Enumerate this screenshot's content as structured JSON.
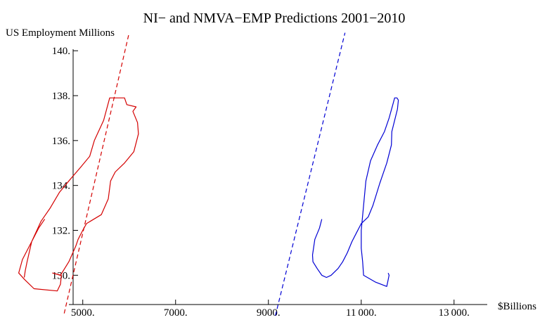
{
  "chart_data": {
    "type": "line",
    "title": "NI− and NMVA−EMP Predictions 2001−2010",
    "ylabel": "US Employment Millions",
    "xlabel": "$Billions",
    "x_ticks": [
      {
        "value": 5000,
        "label": "5000."
      },
      {
        "value": 7000,
        "label": "7000."
      },
      {
        "value": 9000,
        "label": "9000."
      },
      {
        "value": 11000,
        "label": "11 000."
      },
      {
        "value": 13000,
        "label": "13 000."
      }
    ],
    "y_ticks": [
      {
        "value": 130,
        "label": "130."
      },
      {
        "value": 132,
        "label": "132."
      },
      {
        "value": 134,
        "label": "134."
      },
      {
        "value": 136,
        "label": "136."
      },
      {
        "value": 138,
        "label": "138."
      },
      {
        "value": 140,
        "label": "140."
      }
    ],
    "xlim": [
      3550,
      14200
    ],
    "ylim": [
      128.1,
      140.6
    ],
    "grid": false,
    "series": [
      {
        "style": "solid",
        "color": "#d40000",
        "points": [
          [
            4180,
            132.5
          ],
          [
            4050,
            132.1
          ],
          [
            3900,
            131.5
          ],
          [
            3700,
            130.7
          ],
          [
            3620,
            130.1
          ],
          [
            3750,
            129.8
          ],
          [
            3950,
            129.4
          ],
          [
            4450,
            129.3
          ],
          [
            4520,
            129.6
          ],
          [
            4540,
            130.0
          ],
          [
            4350,
            130.1
          ],
          [
            4520,
            130.0
          ],
          [
            4700,
            130.6
          ],
          [
            4850,
            131.3
          ],
          [
            4900,
            131.6
          ],
          [
            5000,
            132.0
          ],
          [
            5080,
            132.3
          ],
          [
            5400,
            132.7
          ],
          [
            5550,
            133.4
          ],
          [
            5600,
            134.2
          ],
          [
            5700,
            134.6
          ],
          [
            5900,
            135.0
          ],
          [
            6100,
            135.5
          ],
          [
            6200,
            136.3
          ],
          [
            6180,
            136.8
          ],
          [
            6080,
            137.3
          ],
          [
            6150,
            137.5
          ],
          [
            5950,
            137.6
          ],
          [
            5900,
            137.9
          ],
          [
            5680,
            137.9
          ],
          [
            5580,
            137.9
          ],
          [
            5450,
            136.9
          ],
          [
            5250,
            136.0
          ],
          [
            5150,
            135.3
          ],
          [
            4950,
            134.8
          ],
          [
            4700,
            134.2
          ],
          [
            4500,
            133.7
          ],
          [
            4300,
            133.0
          ],
          [
            4100,
            132.4
          ],
          [
            3900,
            131.5
          ],
          [
            3800,
            130.6
          ],
          [
            3760,
            130.2
          ],
          [
            3740,
            129.9
          ]
        ]
      },
      {
        "style": "dashed",
        "color": "#d40000",
        "points": [
          [
            4600,
            128.3
          ],
          [
            6000,
            140.8
          ]
        ]
      },
      {
        "style": "solid",
        "color": "#0000d4",
        "points": [
          [
            10150,
            132.5
          ],
          [
            10100,
            132.1
          ],
          [
            10000,
            131.6
          ],
          [
            9950,
            130.9
          ],
          [
            9960,
            130.6
          ],
          [
            10050,
            130.3
          ],
          [
            10150,
            130.0
          ],
          [
            10250,
            129.9
          ],
          [
            10350,
            130.0
          ],
          [
            10500,
            130.3
          ],
          [
            10600,
            130.6
          ],
          [
            10700,
            131.0
          ],
          [
            10800,
            131.5
          ],
          [
            10900,
            131.9
          ],
          [
            11000,
            132.3
          ],
          [
            11150,
            132.6
          ],
          [
            11250,
            133.1
          ],
          [
            11400,
            134.1
          ],
          [
            11550,
            135.0
          ],
          [
            11650,
            135.8
          ],
          [
            11660,
            136.4
          ],
          [
            11720,
            136.9
          ],
          [
            11780,
            137.4
          ],
          [
            11800,
            137.8
          ],
          [
            11770,
            137.9
          ],
          [
            11720,
            137.9
          ],
          [
            11680,
            137.6
          ],
          [
            11600,
            137.0
          ],
          [
            11500,
            136.4
          ],
          [
            11350,
            135.8
          ],
          [
            11200,
            135.1
          ],
          [
            11100,
            134.2
          ],
          [
            11050,
            133.1
          ],
          [
            11000,
            132.0
          ],
          [
            11000,
            131.2
          ],
          [
            11030,
            130.6
          ],
          [
            11050,
            130.0
          ],
          [
            11300,
            129.7
          ],
          [
            11550,
            129.5
          ],
          [
            11580,
            129.8
          ],
          [
            11600,
            130.0
          ],
          [
            11580,
            130.1
          ]
        ]
      },
      {
        "style": "dashed",
        "color": "#0000d4",
        "points": [
          [
            9150,
            128.2
          ],
          [
            10650,
            140.8
          ]
        ]
      }
    ]
  }
}
